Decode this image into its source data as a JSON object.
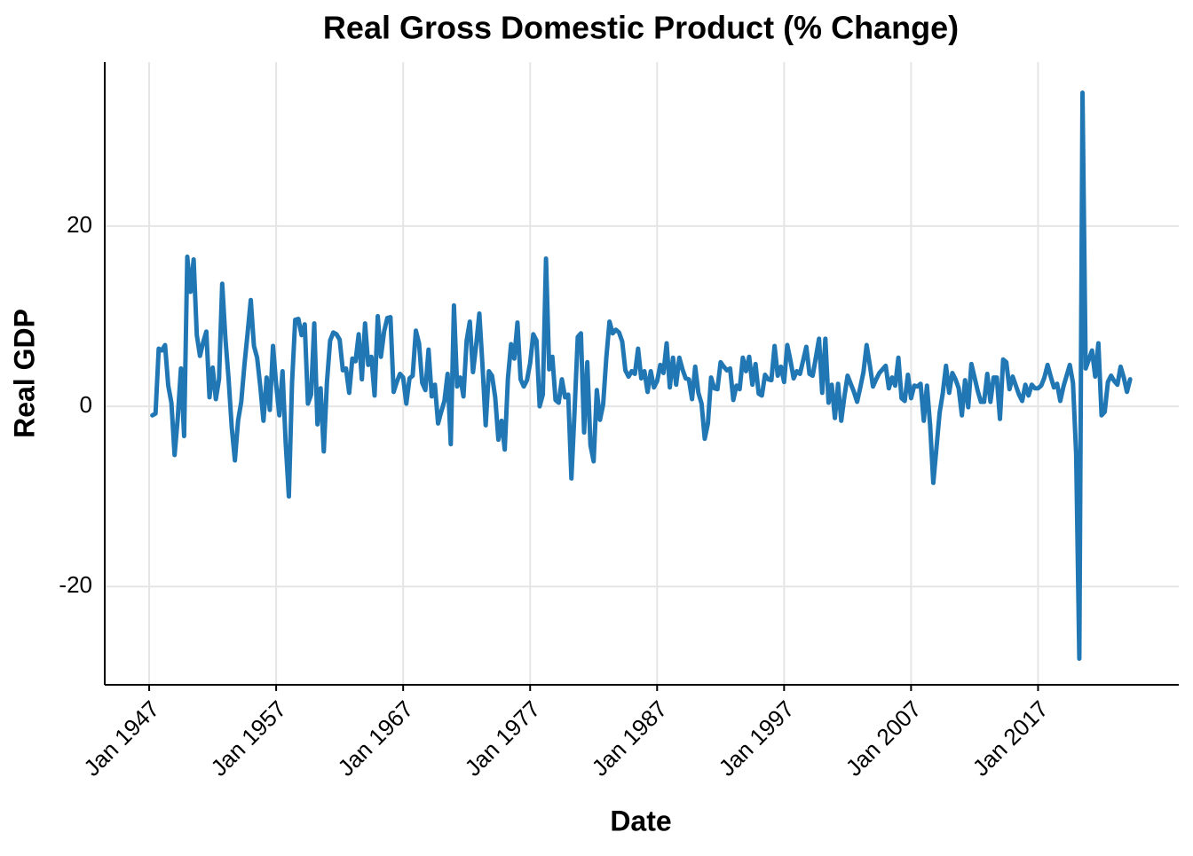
{
  "chart_data": {
    "type": "line",
    "title": "Real Gross Domestic Product (% Change)",
    "x_label": "Date",
    "y_label": "Real GDP",
    "color": "#2077b4",
    "grid": true,
    "xlim": [
      "1943-07",
      "2028-02"
    ],
    "xticks": [
      {
        "value": "1947-01",
        "label": "Jan 1947"
      },
      {
        "value": "1957-01",
        "label": "Jan 1957"
      },
      {
        "value": "1967-01",
        "label": "Jan 1967"
      },
      {
        "value": "1977-01",
        "label": "Jan 1977"
      },
      {
        "value": "1987-01",
        "label": "Jan 1987"
      },
      {
        "value": "1997-01",
        "label": "Jan 1997"
      },
      {
        "value": "2007-01",
        "label": "Jan 2007"
      },
      {
        "value": "2017-01",
        "label": "Jan 2017"
      }
    ],
    "ylim": [
      -30.9,
      38.2
    ],
    "yticks": [
      -20,
      0,
      20
    ],
    "x": [
      "1947-04",
      "1947-07",
      "1947-10",
      "1948-01",
      "1948-04",
      "1948-07",
      "1948-10",
      "1949-01",
      "1949-04",
      "1949-07",
      "1949-10",
      "1950-01",
      "1950-04",
      "1950-07",
      "1950-10",
      "1951-01",
      "1951-04",
      "1951-07",
      "1951-10",
      "1952-01",
      "1952-04",
      "1952-07",
      "1952-10",
      "1953-01",
      "1953-04",
      "1953-07",
      "1953-10",
      "1954-01",
      "1954-04",
      "1954-07",
      "1954-10",
      "1955-01",
      "1955-04",
      "1955-07",
      "1955-10",
      "1956-01",
      "1956-04",
      "1956-07",
      "1956-10",
      "1957-01",
      "1957-04",
      "1957-07",
      "1957-10",
      "1958-01",
      "1958-04",
      "1958-07",
      "1958-10",
      "1959-01",
      "1959-04",
      "1959-07",
      "1959-10",
      "1960-01",
      "1960-04",
      "1960-07",
      "1960-10",
      "1961-01",
      "1961-04",
      "1961-07",
      "1961-10",
      "1962-01",
      "1962-04",
      "1962-07",
      "1962-10",
      "1963-01",
      "1963-04",
      "1963-07",
      "1963-10",
      "1964-01",
      "1964-04",
      "1964-07",
      "1964-10",
      "1965-01",
      "1965-04",
      "1965-07",
      "1965-10",
      "1966-01",
      "1966-04",
      "1966-07",
      "1966-10",
      "1967-01",
      "1967-04",
      "1967-07",
      "1967-10",
      "1968-01",
      "1968-04",
      "1968-07",
      "1968-10",
      "1969-01",
      "1969-04",
      "1969-07",
      "1969-10",
      "1970-01",
      "1970-04",
      "1970-07",
      "1970-10",
      "1971-01",
      "1971-04",
      "1971-07",
      "1971-10",
      "1972-01",
      "1972-04",
      "1972-07",
      "1972-10",
      "1973-01",
      "1973-04",
      "1973-07",
      "1973-10",
      "1974-01",
      "1974-04",
      "1974-07",
      "1974-10",
      "1975-01",
      "1975-04",
      "1975-07",
      "1975-10",
      "1976-01",
      "1976-04",
      "1976-07",
      "1976-10",
      "1977-01",
      "1977-04",
      "1977-07",
      "1977-10",
      "1978-01",
      "1978-04",
      "1978-07",
      "1978-10",
      "1979-01",
      "1979-04",
      "1979-07",
      "1979-10",
      "1980-01",
      "1980-04",
      "1980-07",
      "1980-10",
      "1981-01",
      "1981-04",
      "1981-07",
      "1981-10",
      "1982-01",
      "1982-04",
      "1982-07",
      "1982-10",
      "1983-01",
      "1983-04",
      "1983-07",
      "1983-10",
      "1984-01",
      "1984-04",
      "1984-07",
      "1984-10",
      "1985-01",
      "1985-04",
      "1985-07",
      "1985-10",
      "1986-01",
      "1986-04",
      "1986-07",
      "1986-10",
      "1987-01",
      "1987-04",
      "1987-07",
      "1987-10",
      "1988-01",
      "1988-04",
      "1988-07",
      "1988-10",
      "1989-01",
      "1989-04",
      "1989-07",
      "1989-10",
      "1990-01",
      "1990-04",
      "1990-07",
      "1990-10",
      "1991-01",
      "1991-04",
      "1991-07",
      "1991-10",
      "1992-01",
      "1992-04",
      "1992-07",
      "1992-10",
      "1993-01",
      "1993-04",
      "1993-07",
      "1993-10",
      "1994-01",
      "1994-04",
      "1994-07",
      "1994-10",
      "1995-01",
      "1995-04",
      "1995-07",
      "1995-10",
      "1996-01",
      "1996-04",
      "1996-07",
      "1996-10",
      "1997-01",
      "1997-04",
      "1997-07",
      "1997-10",
      "1998-01",
      "1998-04",
      "1998-07",
      "1998-10",
      "1999-01",
      "1999-04",
      "1999-07",
      "1999-10",
      "2000-01",
      "2000-04",
      "2000-07",
      "2000-10",
      "2001-01",
      "2001-04",
      "2001-07",
      "2001-10",
      "2002-01",
      "2002-04",
      "2002-07",
      "2002-10",
      "2003-01",
      "2003-04",
      "2003-07",
      "2003-10",
      "2004-01",
      "2004-04",
      "2004-07",
      "2004-10",
      "2005-01",
      "2005-04",
      "2005-07",
      "2005-10",
      "2006-01",
      "2006-04",
      "2006-07",
      "2006-10",
      "2007-01",
      "2007-04",
      "2007-07",
      "2007-10",
      "2008-01",
      "2008-04",
      "2008-07",
      "2008-10",
      "2009-01",
      "2009-04",
      "2009-07",
      "2009-10",
      "2010-01",
      "2010-04",
      "2010-07",
      "2010-10",
      "2011-01",
      "2011-04",
      "2011-07",
      "2011-10",
      "2012-01",
      "2012-04",
      "2012-07",
      "2012-10",
      "2013-01",
      "2013-04",
      "2013-07",
      "2013-10",
      "2014-01",
      "2014-04",
      "2014-07",
      "2014-10",
      "2015-01",
      "2015-04",
      "2015-07",
      "2015-10",
      "2016-01",
      "2016-04",
      "2016-07",
      "2016-10",
      "2017-01",
      "2017-04",
      "2017-07",
      "2017-10",
      "2018-01",
      "2018-04",
      "2018-07",
      "2018-10",
      "2019-01",
      "2019-04",
      "2019-07",
      "2019-10",
      "2020-01",
      "2020-04",
      "2020-07",
      "2020-10",
      "2021-01",
      "2021-04",
      "2021-07",
      "2021-10",
      "2022-01",
      "2022-04",
      "2022-07",
      "2022-10",
      "2023-01",
      "2023-04",
      "2023-07",
      "2023-10",
      "2024-01",
      "2024-04"
    ],
    "values": [
      -1.0,
      -0.8,
      6.4,
      6.2,
      6.8,
      2.3,
      0.4,
      -5.4,
      -1.3,
      4.2,
      -3.3,
      16.6,
      12.7,
      16.3,
      7.9,
      5.6,
      7.1,
      8.3,
      1.0,
      4.3,
      0.8,
      3.0,
      13.6,
      7.6,
      3.1,
      -2.3,
      -6.0,
      -1.6,
      0.5,
      4.6,
      8.1,
      11.8,
      6.7,
      5.4,
      2.2,
      -1.6,
      3.2,
      -0.4,
      6.7,
      2.4,
      -1.0,
      3.9,
      -4.1,
      -10.0,
      2.6,
      9.6,
      9.7,
      7.9,
      9.1,
      0.3,
      1.3,
      9.2,
      -2.0,
      2.0,
      -5.0,
      2.7,
      7.3,
      8.2,
      8.0,
      7.4,
      4.0,
      4.2,
      1.5,
      5.3,
      5.0,
      8.0,
      3.0,
      9.2,
      4.6,
      5.5,
      1.2,
      10.0,
      5.5,
      8.3,
      9.8,
      9.9,
      1.6,
      2.7,
      3.6,
      3.2,
      0.3,
      3.1,
      3.4,
      8.4,
      7.0,
      2.6,
      1.8,
      6.3,
      1.1,
      2.4,
      -1.9,
      -0.6,
      0.6,
      3.6,
      -4.2,
      11.2,
      2.2,
      3.2,
      1.1,
      7.3,
      9.4,
      3.8,
      6.8,
      10.3,
      4.5,
      -2.1,
      3.9,
      3.4,
      1.0,
      -3.7,
      -1.6,
      -4.8,
      3.1,
      6.9,
      5.3,
      9.3,
      3.0,
      2.2,
      2.9,
      4.8,
      8.0,
      7.3,
      0.0,
      1.3,
      16.4,
      4.1,
      5.5,
      0.7,
      0.4,
      3.0,
      1.0,
      1.3,
      -8.0,
      -0.5,
      7.7,
      8.1,
      -2.9,
      4.9,
      -4.3,
      -6.1,
      1.8,
      -1.5,
      0.2,
      5.4,
      9.4,
      8.1,
      8.5,
      8.2,
      7.2,
      4.0,
      3.3,
      3.9,
      3.6,
      6.4,
      3.1,
      3.9,
      1.6,
      3.9,
      2.1,
      2.8,
      4.6,
      3.7,
      7.0,
      2.1,
      5.4,
      2.4,
      5.4,
      4.1,
      3.1,
      3.0,
      0.8,
      4.4,
      1.5,
      0.3,
      -3.6,
      -1.9,
      3.2,
      2.0,
      1.9,
      4.9,
      4.4,
      4.0,
      4.2,
      0.7,
      2.3,
      1.9,
      5.4,
      3.9,
      5.5,
      2.4,
      4.7,
      1.4,
      1.2,
      3.5,
      3.0,
      2.9,
      6.7,
      3.4,
      4.4,
      2.7,
      6.8,
      5.1,
      3.1,
      3.9,
      3.6,
      5.1,
      6.6,
      3.6,
      3.4,
      5.4,
      7.5,
      1.5,
      7.5,
      0.4,
      2.4,
      -1.3,
      2.5,
      -1.6,
      1.1,
      3.4,
      2.5,
      1.6,
      0.5,
      2.1,
      3.8,
      6.8,
      4.6,
      2.2,
      3.0,
      3.7,
      4.1,
      4.5,
      2.0,
      3.2,
      2.3,
      5.4,
      0.9,
      0.6,
      3.5,
      0.9,
      2.3,
      2.2,
      2.5,
      -1.6,
      2.3,
      -2.1,
      -8.5,
      -4.6,
      -0.7,
      1.5,
      4.5,
      1.5,
      3.7,
      3.0,
      2.0,
      -1.0,
      2.9,
      -0.1,
      4.7,
      3.2,
      1.7,
      0.5,
      0.5,
      3.6,
      0.5,
      3.2,
      3.2,
      -1.4,
      5.2,
      4.9,
      1.9,
      3.3,
      2.3,
      1.3,
      0.6,
      2.4,
      1.2,
      2.4,
      2.0,
      2.0,
      2.3,
      3.2,
      4.6,
      3.3,
      2.1,
      2.5,
      0.6,
      2.2,
      3.4,
      4.6,
      2.6,
      -5.3,
      -28.0,
      34.8,
      4.2,
      5.2,
      6.2,
      3.3,
      7.0,
      -1.0,
      -0.6,
      2.7,
      3.4,
      2.8,
      2.4,
      4.4,
      3.2,
      1.6,
      3.0
    ]
  }
}
